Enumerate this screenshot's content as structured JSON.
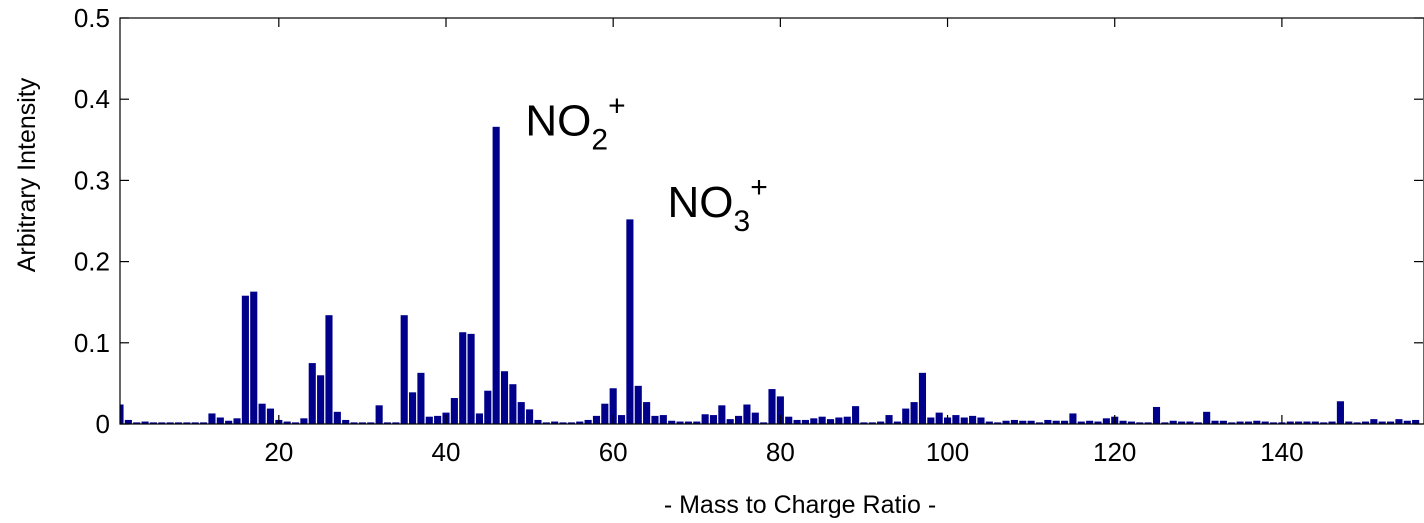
{
  "chart_data": {
    "type": "bar",
    "title": "",
    "xlabel": "- Mass to Charge Ratio -",
    "ylabel": "Arbitrary Intensity",
    "xlim": [
      1,
      157
    ],
    "ylim": [
      0,
      0.5
    ],
    "x_ticks": [
      20,
      40,
      60,
      80,
      100,
      120,
      140
    ],
    "y_ticks": [
      0,
      0.1,
      0.2,
      0.3,
      0.4,
      0.5
    ],
    "y_tick_labels": [
      "0",
      "0.1",
      "0.2",
      "0.3",
      "0.4",
      "0.5"
    ],
    "grid": false,
    "bar_color": "#00008B",
    "x": [
      1,
      2,
      3,
      4,
      5,
      6,
      7,
      8,
      9,
      10,
      11,
      12,
      13,
      14,
      15,
      16,
      17,
      18,
      19,
      20,
      21,
      22,
      23,
      24,
      25,
      26,
      27,
      28,
      29,
      30,
      31,
      32,
      33,
      34,
      35,
      36,
      37,
      38,
      39,
      40,
      41,
      42,
      43,
      44,
      45,
      46,
      47,
      48,
      49,
      50,
      51,
      52,
      53,
      54,
      55,
      56,
      57,
      58,
      59,
      60,
      61,
      62,
      63,
      64,
      65,
      66,
      67,
      68,
      69,
      70,
      71,
      72,
      73,
      74,
      75,
      76,
      77,
      78,
      79,
      80,
      81,
      82,
      83,
      84,
      85,
      86,
      87,
      88,
      89,
      90,
      91,
      92,
      93,
      94,
      95,
      96,
      97,
      98,
      99,
      100,
      101,
      102,
      103,
      104,
      105,
      106,
      107,
      108,
      109,
      110,
      111,
      112,
      113,
      114,
      115,
      116,
      117,
      118,
      119,
      120,
      121,
      122,
      123,
      124,
      125,
      126,
      127,
      128,
      129,
      130,
      131,
      132,
      133,
      134,
      135,
      136,
      137,
      138,
      139,
      140,
      141,
      142,
      143,
      144,
      145,
      146,
      147,
      148,
      149,
      150,
      151,
      152,
      153,
      154,
      155,
      156
    ],
    "values": [
      0.024,
      0.005,
      0.002,
      0.003,
      0.002,
      0.002,
      0.002,
      0.002,
      0.002,
      0.002,
      0.002,
      0.013,
      0.008,
      0.004,
      0.007,
      0.158,
      0.163,
      0.025,
      0.019,
      0.005,
      0.003,
      0.002,
      0.007,
      0.075,
      0.06,
      0.134,
      0.015,
      0.005,
      0.002,
      0.002,
      0.002,
      0.023,
      0.002,
      0.002,
      0.134,
      0.039,
      0.063,
      0.009,
      0.01,
      0.014,
      0.032,
      0.113,
      0.111,
      0.013,
      0.041,
      0.366,
      0.065,
      0.049,
      0.027,
      0.018,
      0.005,
      0.002,
      0.003,
      0.002,
      0.002,
      0.003,
      0.005,
      0.01,
      0.025,
      0.044,
      0.011,
      0.252,
      0.047,
      0.027,
      0.01,
      0.011,
      0.004,
      0.003,
      0.003,
      0.003,
      0.012,
      0.011,
      0.023,
      0.006,
      0.01,
      0.024,
      0.014,
      0.002,
      0.043,
      0.034,
      0.009,
      0.005,
      0.005,
      0.007,
      0.009,
      0.006,
      0.008,
      0.009,
      0.022,
      0.002,
      0.002,
      0.003,
      0.011,
      0.003,
      0.019,
      0.027,
      0.063,
      0.008,
      0.014,
      0.008,
      0.011,
      0.008,
      0.01,
      0.008,
      0.003,
      0.002,
      0.004,
      0.005,
      0.004,
      0.004,
      0.002,
      0.005,
      0.004,
      0.004,
      0.013,
      0.003,
      0.004,
      0.003,
      0.007,
      0.009,
      0.004,
      0.003,
      0.002,
      0.002,
      0.021,
      0.002,
      0.004,
      0.003,
      0.003,
      0.002,
      0.015,
      0.004,
      0.004,
      0.002,
      0.003,
      0.003,
      0.004,
      0.003,
      0.002,
      0.002,
      0.003,
      0.003,
      0.003,
      0.003,
      0.002,
      0.003,
      0.028,
      0.003,
      0.002,
      0.003,
      0.006,
      0.003,
      0.003,
      0.006,
      0.004,
      0.005
    ],
    "annotations": [
      {
        "base": "NO",
        "sub": "2",
        "sup": "+",
        "x": 49.5,
        "y": 0.355
      },
      {
        "base": "NO",
        "sub": "3",
        "sup": "+",
        "x": 66.5,
        "y": 0.255
      }
    ]
  }
}
